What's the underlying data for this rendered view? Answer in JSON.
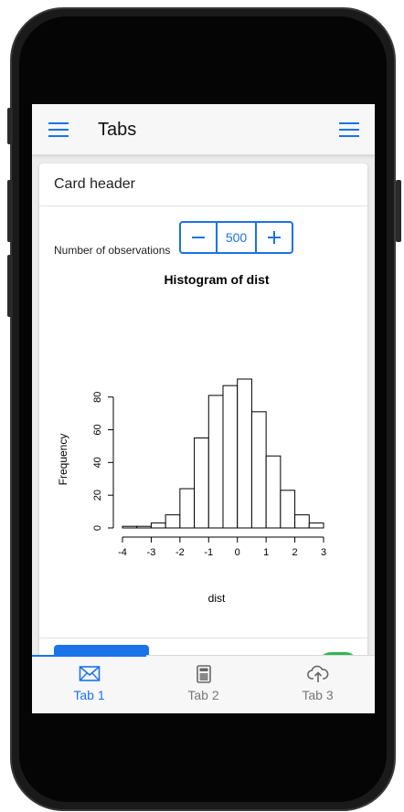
{
  "navbar": {
    "title": "Tabs"
  },
  "card": {
    "header": "Card header",
    "stepper": {
      "label": "Number of observations",
      "value": "500"
    }
  },
  "chart_data": {
    "type": "bar",
    "title": "Histogram of dist",
    "xlabel": "dist",
    "ylabel": "Frequency",
    "bin_edges": [
      -4,
      -3.5,
      -3,
      -2.5,
      -2,
      -1.5,
      -1,
      -0.5,
      0,
      0.5,
      1,
      1.5,
      2,
      2.5,
      3
    ],
    "values": [
      1,
      1,
      3,
      8,
      24,
      55,
      81,
      87,
      91,
      71,
      44,
      23,
      8,
      3
    ],
    "xticks": [
      -4,
      -3,
      -2,
      -1,
      0,
      1,
      2,
      3
    ],
    "yticks": [
      0,
      20,
      40,
      60,
      80
    ],
    "xlim": [
      -4,
      3
    ],
    "ylim": [
      0,
      91
    ]
  },
  "tabs": [
    {
      "label": "Tab 1",
      "icon": "mail-icon",
      "active": true
    },
    {
      "label": "Tab 2",
      "icon": "calculator-icon",
      "active": false
    },
    {
      "label": "Tab 3",
      "icon": "cloud-upload-icon",
      "active": false
    }
  ],
  "colors": {
    "accent": "#1a73e8",
    "success": "#2fb64f"
  }
}
